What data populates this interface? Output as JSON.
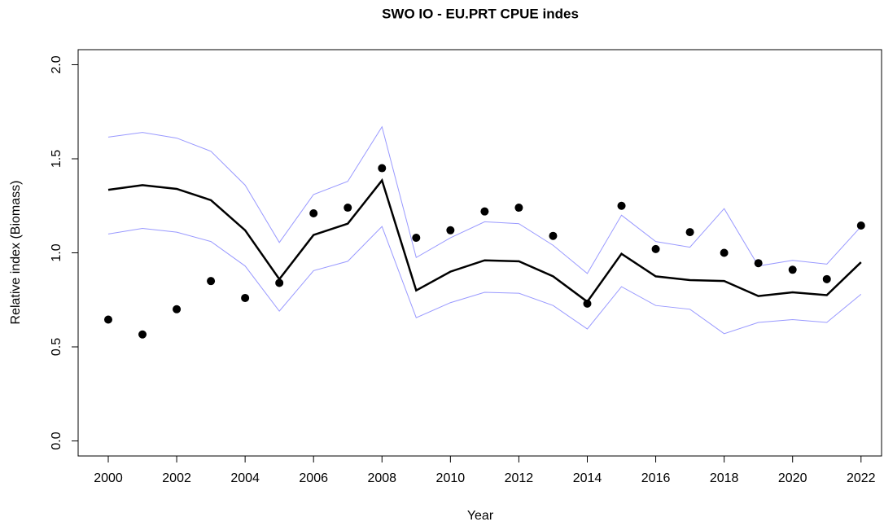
{
  "chart_data": {
    "type": "line",
    "title": "SWO IO - EU.PRT CPUE indes",
    "x_label": "Year",
    "y_label": "Relative index (Biomass)",
    "x": [
      2000,
      2001,
      2002,
      2003,
      2004,
      2005,
      2006,
      2007,
      2008,
      2009,
      2010,
      2011,
      2012,
      2013,
      2014,
      2015,
      2016,
      2017,
      2018,
      2019,
      2020,
      2021,
      2022
    ],
    "xlim": [
      1999.12,
      2022.6
    ],
    "xticks": [
      2000,
      2002,
      2004,
      2006,
      2008,
      2010,
      2012,
      2014,
      2016,
      2018,
      2020,
      2022
    ],
    "ylim": [
      -0.08,
      2.08
    ],
    "yticks": [
      {
        "value": 0,
        "label": "0.0"
      },
      0.5,
      {
        "value": 1,
        "label": "1.0"
      },
      1.5,
      {
        "value": 2,
        "label": "2.0"
      }
    ],
    "series": [
      {
        "style": "line",
        "color": "#9999ff",
        "values": [
          1.615,
          1.64,
          1.61,
          1.54,
          1.36,
          1.055,
          1.31,
          1.38,
          1.67,
          0.975,
          1.08,
          1.165,
          1.155,
          1.04,
          0.89,
          1.2,
          1.06,
          1.03,
          1.235,
          0.93,
          0.96,
          0.94,
          1.14
        ]
      },
      {
        "style": "line",
        "color": "#9999ff",
        "values": [
          1.1,
          1.13,
          1.11,
          1.06,
          0.93,
          0.69,
          0.905,
          0.955,
          1.14,
          0.655,
          0.735,
          0.79,
          0.785,
          0.72,
          0.595,
          0.82,
          0.72,
          0.7,
          0.57,
          0.63,
          0.645,
          0.63,
          0.78
        ]
      },
      {
        "style": "line",
        "color": "#000000",
        "values": [
          1.335,
          1.36,
          1.34,
          1.28,
          1.12,
          0.86,
          1.095,
          1.155,
          1.385,
          0.8,
          0.9,
          0.96,
          0.955,
          0.875,
          0.74,
          0.995,
          0.875,
          0.855,
          0.85,
          0.77,
          0.79,
          0.775,
          0.95
        ]
      },
      {
        "style": "points",
        "color": "#000000",
        "values": [
          0.645,
          0.566,
          0.7,
          0.85,
          0.76,
          0.84,
          1.21,
          1.24,
          1.45,
          1.08,
          1.12,
          1.22,
          1.24,
          1.09,
          0.73,
          1.25,
          1.02,
          1.11,
          1.0,
          0.945,
          0.91,
          0.86,
          1.145
        ]
      }
    ]
  }
}
